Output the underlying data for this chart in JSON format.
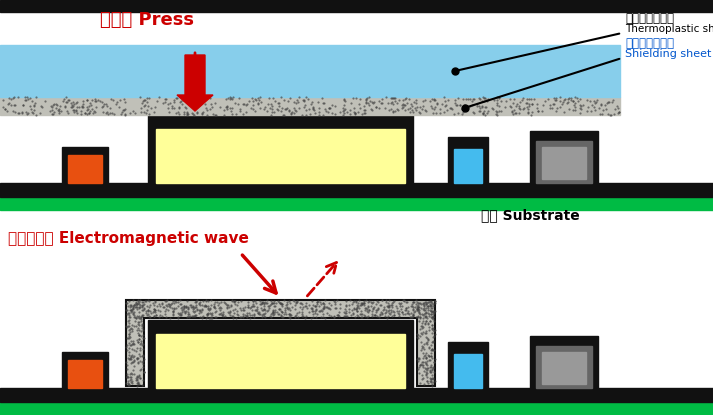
{
  "bg_color": "#ffffff",
  "black": "#111111",
  "light_blue": "#87CEEB",
  "shield_gray": "#c0c0b8",
  "green_sub": "#00bb44",
  "yellow_chip": "#ffff99",
  "orange_comp": "#e85010",
  "blue_comp": "#44bbee",
  "gray_dark": "#666666",
  "gray_light": "#999999",
  "press_color": "#cc0000",
  "em_color": "#cc0000",
  "blue_label": "#0055cc",
  "label1_jp": "埋め込みシート",
  "label1_en": "Thermoplastic sheet",
  "label2_jp": "シールドシート",
  "label2_en": "Shielding sheet",
  "press_jp": "プレス Press",
  "substrate_jp": "基板 Substrate",
  "em_jp": "電磁ノイズ Electromagnetic wave"
}
